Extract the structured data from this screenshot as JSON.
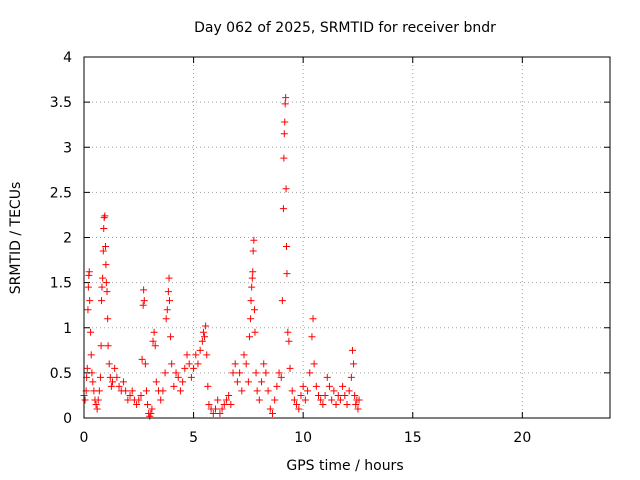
{
  "chart_data": {
    "type": "scatter",
    "title": "Day 062 of 2025, SRMTID for receiver bndr",
    "xlabel": "GPS time / hours",
    "ylabel": "SRMTID / TECUs",
    "xlim": [
      0,
      24
    ],
    "ylim": [
      0,
      4
    ],
    "x_ticks": [
      0,
      5,
      10,
      15,
      20
    ],
    "x_tick_labels": [
      "0",
      "5",
      "10",
      "15",
      "20"
    ],
    "y_ticks": [
      0,
      0.5,
      1,
      1.5,
      2,
      2.5,
      3,
      3.5,
      4
    ],
    "y_tick_labels": [
      "0",
      "0.5",
      "1",
      "1.5",
      "2",
      "2.5",
      "3",
      "3.5",
      "4"
    ],
    "grid": true,
    "marker": "+",
    "colors": {
      "series": "#ff0000",
      "grid": "#a0a0a0",
      "axis": "#000000"
    },
    "series": [
      {
        "name": "SRMTID",
        "points": [
          [
            0.0,
            0.25
          ],
          [
            0.05,
            0.2
          ],
          [
            0.1,
            0.3
          ],
          [
            0.12,
            0.45
          ],
          [
            0.15,
            0.55
          ],
          [
            0.18,
            1.2
          ],
          [
            0.2,
            1.45
          ],
          [
            0.22,
            1.58
          ],
          [
            0.24,
            1.62
          ],
          [
            0.26,
            1.3
          ],
          [
            0.3,
            0.95
          ],
          [
            0.33,
            0.7
          ],
          [
            0.36,
            0.5
          ],
          [
            0.4,
            0.4
          ],
          [
            0.45,
            0.3
          ],
          [
            0.5,
            0.2
          ],
          [
            0.55,
            0.15
          ],
          [
            0.6,
            0.1
          ],
          [
            0.65,
            0.2
          ],
          [
            0.7,
            0.3
          ],
          [
            0.75,
            0.45
          ],
          [
            0.78,
            0.8
          ],
          [
            0.8,
            1.3
          ],
          [
            0.82,
            1.45
          ],
          [
            0.85,
            1.55
          ],
          [
            0.88,
            1.85
          ],
          [
            0.9,
            2.1
          ],
          [
            0.92,
            2.22
          ],
          [
            0.95,
            2.24
          ],
          [
            0.98,
            1.9
          ],
          [
            1.0,
            1.7
          ],
          [
            1.02,
            1.5
          ],
          [
            1.05,
            1.4
          ],
          [
            1.08,
            1.1
          ],
          [
            1.1,
            0.8
          ],
          [
            1.15,
            0.6
          ],
          [
            1.2,
            0.45
          ],
          [
            1.25,
            0.35
          ],
          [
            1.3,
            0.4
          ],
          [
            1.4,
            0.55
          ],
          [
            1.5,
            0.45
          ],
          [
            1.6,
            0.35
          ],
          [
            1.7,
            0.3
          ],
          [
            1.8,
            0.4
          ],
          [
            1.9,
            0.3
          ],
          [
            2.0,
            0.2
          ],
          [
            2.1,
            0.25
          ],
          [
            2.2,
            0.3
          ],
          [
            2.3,
            0.2
          ],
          [
            2.4,
            0.15
          ],
          [
            2.5,
            0.2
          ],
          [
            2.6,
            0.25
          ],
          [
            2.65,
            0.65
          ],
          [
            2.7,
            1.25
          ],
          [
            2.72,
            1.42
          ],
          [
            2.75,
            1.3
          ],
          [
            2.8,
            0.6
          ],
          [
            2.85,
            0.3
          ],
          [
            2.9,
            0.15
          ],
          [
            2.95,
            0.05
          ],
          [
            3.0,
            0.02
          ],
          [
            3.05,
            0.05
          ],
          [
            3.1,
            0.1
          ],
          [
            3.15,
            0.85
          ],
          [
            3.2,
            0.95
          ],
          [
            3.25,
            0.8
          ],
          [
            3.3,
            0.4
          ],
          [
            3.4,
            0.3
          ],
          [
            3.5,
            0.2
          ],
          [
            3.6,
            0.3
          ],
          [
            3.7,
            0.5
          ],
          [
            3.75,
            1.1
          ],
          [
            3.8,
            1.2
          ],
          [
            3.85,
            1.4
          ],
          [
            3.88,
            1.55
          ],
          [
            3.9,
            1.3
          ],
          [
            3.95,
            0.9
          ],
          [
            4.0,
            0.6
          ],
          [
            4.1,
            0.35
          ],
          [
            4.2,
            0.5
          ],
          [
            4.3,
            0.45
          ],
          [
            4.4,
            0.3
          ],
          [
            4.5,
            0.4
          ],
          [
            4.6,
            0.55
          ],
          [
            4.7,
            0.7
          ],
          [
            4.8,
            0.6
          ],
          [
            4.9,
            0.45
          ],
          [
            5.0,
            0.55
          ],
          [
            5.1,
            0.7
          ],
          [
            5.2,
            0.6
          ],
          [
            5.3,
            0.75
          ],
          [
            5.4,
            0.85
          ],
          [
            5.45,
            0.95
          ],
          [
            5.5,
            0.9
          ],
          [
            5.55,
            1.02
          ],
          [
            5.6,
            0.7
          ],
          [
            5.65,
            0.35
          ],
          [
            5.7,
            0.15
          ],
          [
            5.8,
            0.1
          ],
          [
            5.9,
            0.05
          ],
          [
            6.0,
            0.1
          ],
          [
            6.1,
            0.2
          ],
          [
            6.2,
            0.05
          ],
          [
            6.3,
            0.1
          ],
          [
            6.4,
            0.15
          ],
          [
            6.5,
            0.2
          ],
          [
            6.6,
            0.25
          ],
          [
            6.7,
            0.15
          ],
          [
            6.8,
            0.5
          ],
          [
            6.9,
            0.6
          ],
          [
            7.0,
            0.4
          ],
          [
            7.1,
            0.5
          ],
          [
            7.2,
            0.3
          ],
          [
            7.3,
            0.7
          ],
          [
            7.4,
            0.6
          ],
          [
            7.5,
            0.4
          ],
          [
            7.55,
            0.9
          ],
          [
            7.6,
            1.1
          ],
          [
            7.62,
            1.3
          ],
          [
            7.65,
            1.45
          ],
          [
            7.68,
            1.55
          ],
          [
            7.7,
            1.62
          ],
          [
            7.72,
            1.85
          ],
          [
            7.75,
            1.97
          ],
          [
            7.78,
            1.2
          ],
          [
            7.8,
            0.95
          ],
          [
            7.85,
            0.5
          ],
          [
            7.9,
            0.3
          ],
          [
            8.0,
            0.2
          ],
          [
            8.1,
            0.4
          ],
          [
            8.2,
            0.6
          ],
          [
            8.3,
            0.5
          ],
          [
            8.4,
            0.3
          ],
          [
            8.5,
            0.1
          ],
          [
            8.6,
            0.05
          ],
          [
            8.7,
            0.2
          ],
          [
            8.8,
            0.35
          ],
          [
            8.9,
            0.5
          ],
          [
            9.0,
            0.45
          ],
          [
            9.05,
            1.3
          ],
          [
            9.1,
            2.32
          ],
          [
            9.12,
            2.88
          ],
          [
            9.14,
            3.15
          ],
          [
            9.16,
            3.28
          ],
          [
            9.18,
            3.48
          ],
          [
            9.2,
            3.55
          ],
          [
            9.22,
            2.54
          ],
          [
            9.24,
            1.9
          ],
          [
            9.26,
            1.6
          ],
          [
            9.3,
            0.95
          ],
          [
            9.35,
            0.85
          ],
          [
            9.4,
            0.55
          ],
          [
            9.5,
            0.3
          ],
          [
            9.6,
            0.2
          ],
          [
            9.7,
            0.15
          ],
          [
            9.8,
            0.1
          ],
          [
            9.9,
            0.25
          ],
          [
            10.0,
            0.35
          ],
          [
            10.1,
            0.2
          ],
          [
            10.2,
            0.3
          ],
          [
            10.3,
            0.5
          ],
          [
            10.4,
            0.9
          ],
          [
            10.45,
            1.1
          ],
          [
            10.5,
            0.6
          ],
          [
            10.6,
            0.35
          ],
          [
            10.7,
            0.25
          ],
          [
            10.8,
            0.2
          ],
          [
            10.9,
            0.15
          ],
          [
            11.0,
            0.25
          ],
          [
            11.1,
            0.45
          ],
          [
            11.2,
            0.35
          ],
          [
            11.3,
            0.2
          ],
          [
            11.4,
            0.3
          ],
          [
            11.5,
            0.15
          ],
          [
            11.6,
            0.25
          ],
          [
            11.7,
            0.2
          ],
          [
            11.8,
            0.35
          ],
          [
            11.9,
            0.25
          ],
          [
            12.0,
            0.15
          ],
          [
            12.1,
            0.3
          ],
          [
            12.2,
            0.45
          ],
          [
            12.25,
            0.75
          ],
          [
            12.3,
            0.6
          ],
          [
            12.35,
            0.25
          ],
          [
            12.4,
            0.15
          ],
          [
            12.45,
            0.2
          ],
          [
            12.5,
            0.1
          ],
          [
            12.55,
            0.2
          ]
        ]
      }
    ]
  }
}
